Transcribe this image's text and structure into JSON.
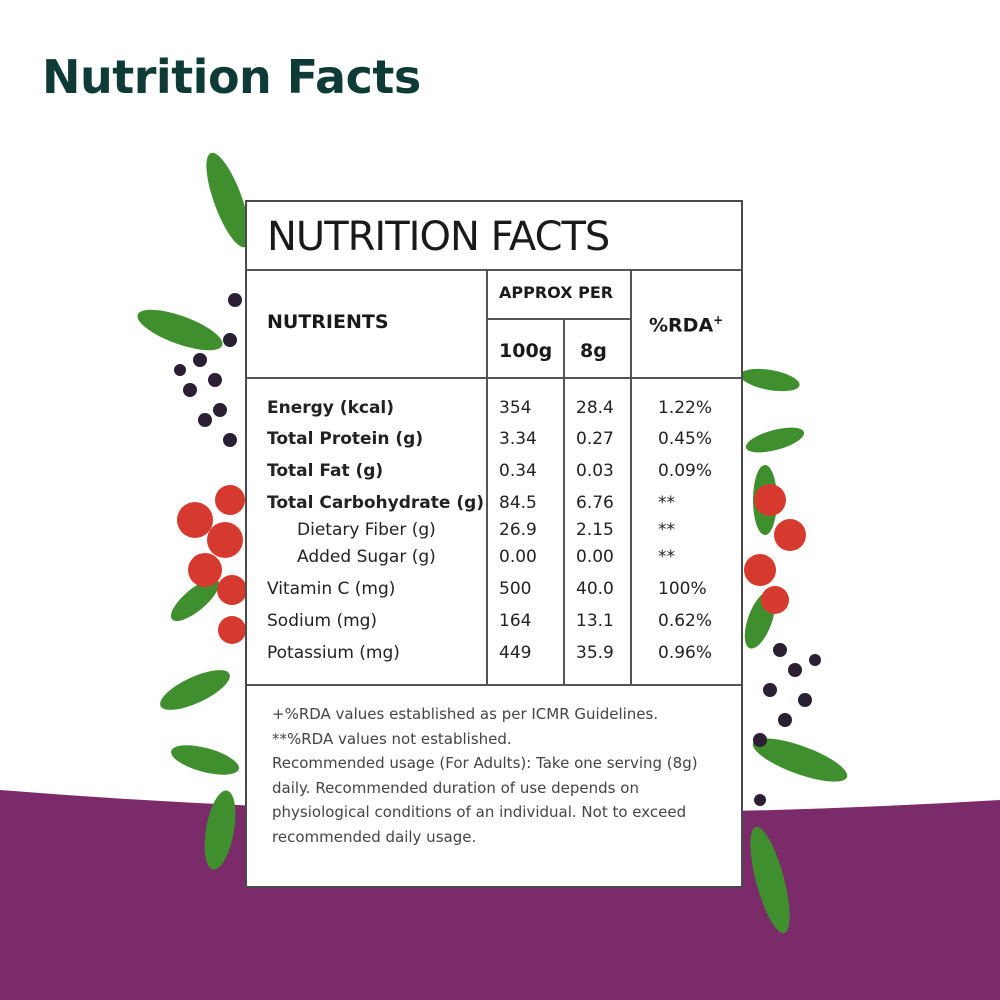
{
  "page_title": "Nutrition Facts",
  "colors": {
    "title": "#0e3b36",
    "band": "#7b2a6a",
    "leaf": "#3f8f2f",
    "berry_red": "#d63a2f",
    "berry_dark": "#2a1f33"
  },
  "label": {
    "title": "NUTRITION FACTS",
    "headers": {
      "nutrients": "NUTRIENTS",
      "approx_per": "APPROX PER",
      "per_100g": "100g",
      "per_8g": "8g",
      "rda": "%RDA",
      "rda_mark": "+"
    },
    "rows": [
      {
        "name": "Energy (kcal)",
        "per_100g": "354",
        "per_8g": "28.4",
        "rda": "1.22%"
      },
      {
        "name": "Total Protein (g)",
        "per_100g": "3.34",
        "per_8g": "0.27",
        "rda": "0.45%"
      },
      {
        "name": "Total Fat (g)",
        "per_100g": "0.34",
        "per_8g": "0.03",
        "rda": "0.09%"
      },
      {
        "name": "Total Carbohydrate (g)",
        "per_100g": "84.5",
        "per_8g": "6.76",
        "rda": "**"
      },
      {
        "name": "Dietary Fiber (g)",
        "per_100g": "26.9",
        "per_8g": "2.15",
        "rda": "**"
      },
      {
        "name": "Added Sugar (g)",
        "per_100g": "0.00",
        "per_8g": "0.00",
        "rda": "**"
      },
      {
        "name": "Vitamin C (mg)",
        "per_100g": "500",
        "per_8g": "40.0",
        "rda": "100%"
      },
      {
        "name": "Sodium (mg)",
        "per_100g": "164",
        "per_8g": "13.1",
        "rda": "0.62%"
      },
      {
        "name": "Potassium (mg)",
        "per_100g": "449",
        "per_8g": "35.9",
        "rda": "0.96%"
      }
    ],
    "footnotes": [
      "+%RDA values established as per ICMR Guidelines.",
      "**%RDA values not established.",
      "Recommended usage (For Adults): Take one serving (8g)",
      "daily. Recommended duration of use depends on",
      "physiological conditions of an individual. Not to exceed",
      "recommended daily usage."
    ]
  }
}
